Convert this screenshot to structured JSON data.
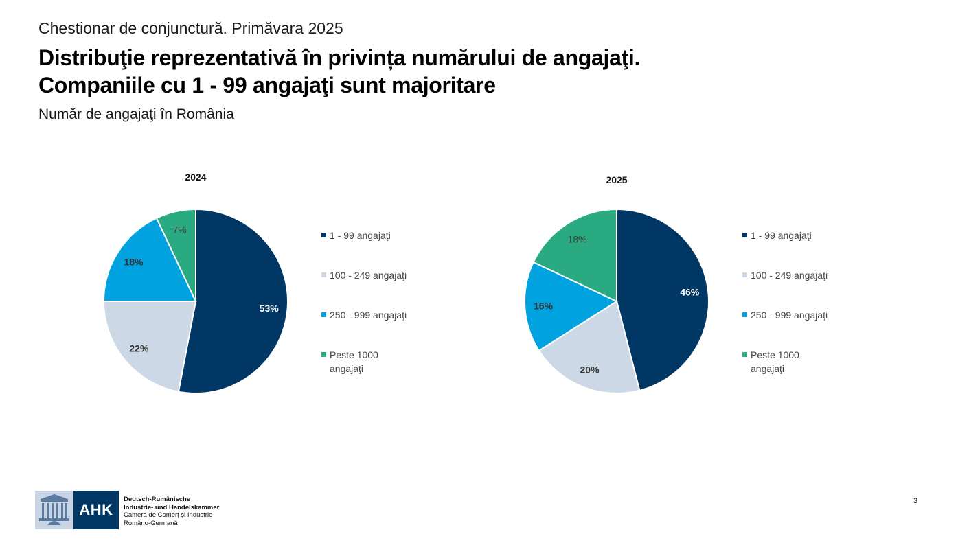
{
  "header": {
    "kicker": "Chestionar de conjunctură. Primăvara 2025",
    "title_line1": "Distribuţie reprezentativă în privința numărului de angajaţi.",
    "title_line2": "Companiile cu 1 - 99 angajaţi sunt majoritare",
    "subtitle": "Număr de angajaţi în România"
  },
  "colors": {
    "c1": "#003764",
    "c2": "#ccd8e6",
    "c3": "#00a3e0",
    "c4": "#2aaa80"
  },
  "chart_data": [
    {
      "type": "pie",
      "title": "2024",
      "categories": [
        "1 - 99 angajaţi",
        "100 - 249 angajaţi",
        "250 - 999 angajaţi",
        "Peste 1000 angajaţi"
      ],
      "values": [
        53,
        22,
        18,
        7
      ],
      "data_labels": [
        "53%",
        "22%",
        "18%",
        "7%"
      ],
      "legend": [
        "1 - 99 angajaţi",
        "100 - 249 angajaţi",
        "250 - 999 angajaţi",
        [
          "Peste 1000",
          "angajaţi"
        ]
      ],
      "legend_position": "right"
    },
    {
      "type": "pie",
      "title": "2025",
      "categories": [
        "1 - 99 angajaţi",
        "100 - 249 angajaţi",
        "250 - 999 angajaţi",
        "Peste 1000 angajaţi"
      ],
      "values": [
        46,
        20,
        16,
        18
      ],
      "data_labels": [
        "46%",
        "20%",
        "16%",
        "18%"
      ],
      "legend": [
        "1 - 99 angajaţi",
        "100 - 249 angajaţi",
        "250 - 999 angajaţi",
        [
          "Peste 1000",
          "angajaţi"
        ]
      ],
      "legend_position": "right"
    }
  ],
  "footer": {
    "logo_text": "AHK",
    "org_line1": "Deutsch-Rumänische",
    "org_line2": "Industrie- und Handelskammer",
    "org_line3": "Camera de Comerţ şi Industrie",
    "org_line4": "Româno-Germană",
    "page_number": "3"
  }
}
